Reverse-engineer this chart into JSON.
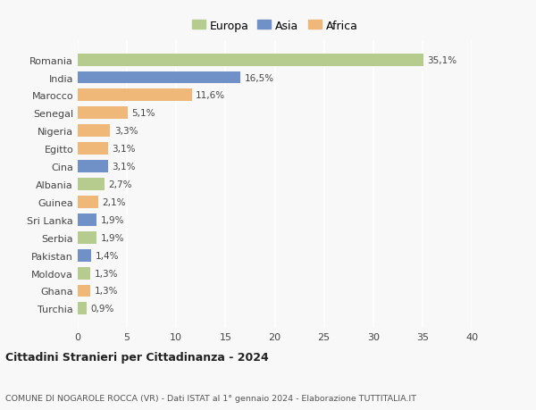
{
  "countries": [
    "Romania",
    "India",
    "Marocco",
    "Senegal",
    "Nigeria",
    "Egitto",
    "Cina",
    "Albania",
    "Guinea",
    "Sri Lanka",
    "Serbia",
    "Pakistan",
    "Moldova",
    "Ghana",
    "Turchia"
  ],
  "values": [
    35.1,
    16.5,
    11.6,
    5.1,
    3.3,
    3.1,
    3.1,
    2.7,
    2.1,
    1.9,
    1.9,
    1.4,
    1.3,
    1.3,
    0.9
  ],
  "labels": [
    "35,1%",
    "16,5%",
    "11,6%",
    "5,1%",
    "3,3%",
    "3,1%",
    "3,1%",
    "2,7%",
    "2,1%",
    "1,9%",
    "1,9%",
    "1,4%",
    "1,3%",
    "1,3%",
    "0,9%"
  ],
  "continents": [
    "Europa",
    "Asia",
    "Africa",
    "Africa",
    "Africa",
    "Africa",
    "Asia",
    "Europa",
    "Africa",
    "Asia",
    "Europa",
    "Asia",
    "Europa",
    "Africa",
    "Europa"
  ],
  "colors": {
    "Europa": "#b5cc8e",
    "Asia": "#7090c8",
    "Africa": "#f0b878"
  },
  "legend_order": [
    "Europa",
    "Asia",
    "Africa"
  ],
  "xlim": [
    0,
    40
  ],
  "xticks": [
    0,
    5,
    10,
    15,
    20,
    25,
    30,
    35,
    40
  ],
  "title": "Cittadini Stranieri per Cittadinanza - 2024",
  "subtitle": "COMUNE DI NOGAROLE ROCCA (VR) - Dati ISTAT al 1° gennaio 2024 - Elaborazione TUTTITALIA.IT",
  "background_color": "#f8f8f8",
  "grid_color": "#ffffff",
  "bar_height": 0.7
}
